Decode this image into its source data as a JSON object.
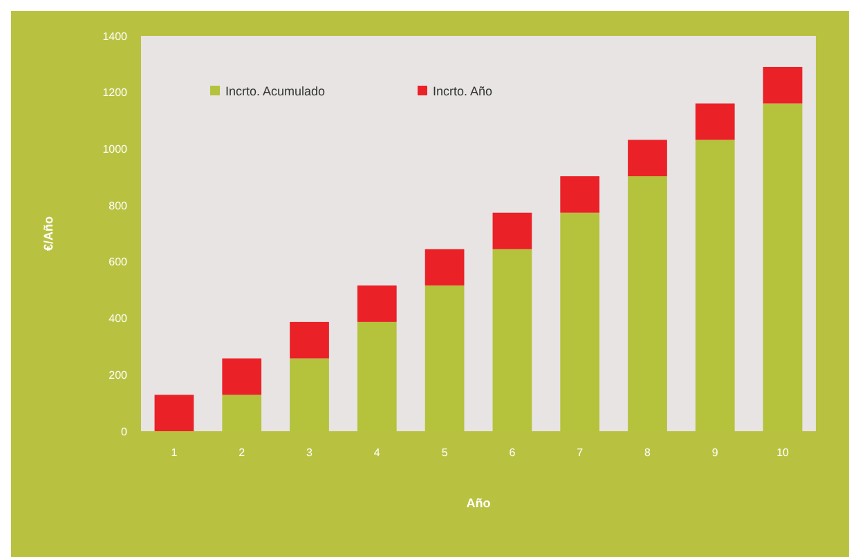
{
  "chart_data": {
    "type": "bar",
    "stacked": true,
    "xlabel": "Año",
    "ylabel": "€/Año",
    "categories": [
      "1",
      "2",
      "3",
      "4",
      "5",
      "6",
      "7",
      "8",
      "9",
      "10"
    ],
    "series": [
      {
        "name": "Incrto. Acumulado",
        "color": "#b5c23c",
        "values": [
          0,
          129,
          258,
          387,
          516,
          645,
          774,
          903,
          1032,
          1161
        ]
      },
      {
        "name": "Incrto. Año",
        "color": "#ea2127",
        "values": [
          129,
          129,
          129,
          129,
          129,
          129,
          129,
          129,
          129,
          129
        ]
      }
    ],
    "ylim": [
      0,
      1400
    ],
    "yticks": [
      0,
      200,
      400,
      600,
      800,
      1000,
      1200,
      1400
    ],
    "grid": false,
    "legend": "top left"
  }
}
